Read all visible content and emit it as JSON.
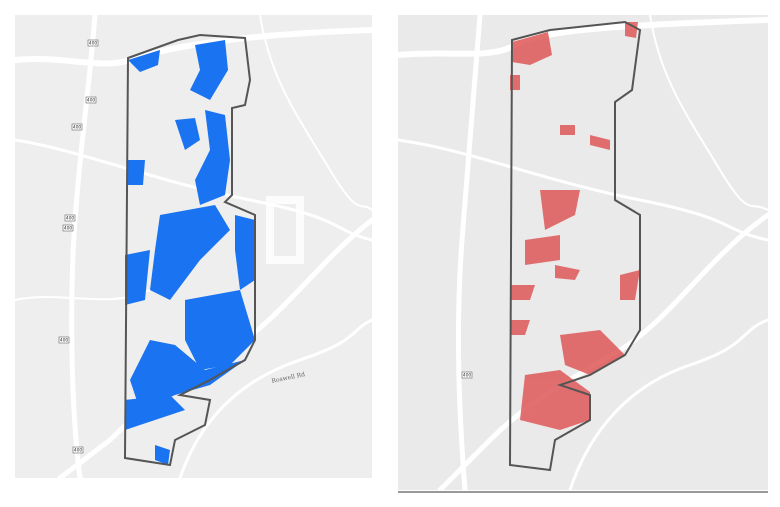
{
  "maps": [
    {
      "labels": {
        "road": "Roswell Rd",
        "shields": [
          "400",
          "400",
          "400",
          "400",
          "400",
          "400",
          "400"
        ]
      }
    },
    {
      "labels": {
        "shields": [
          "400"
        ]
      }
    }
  ]
}
